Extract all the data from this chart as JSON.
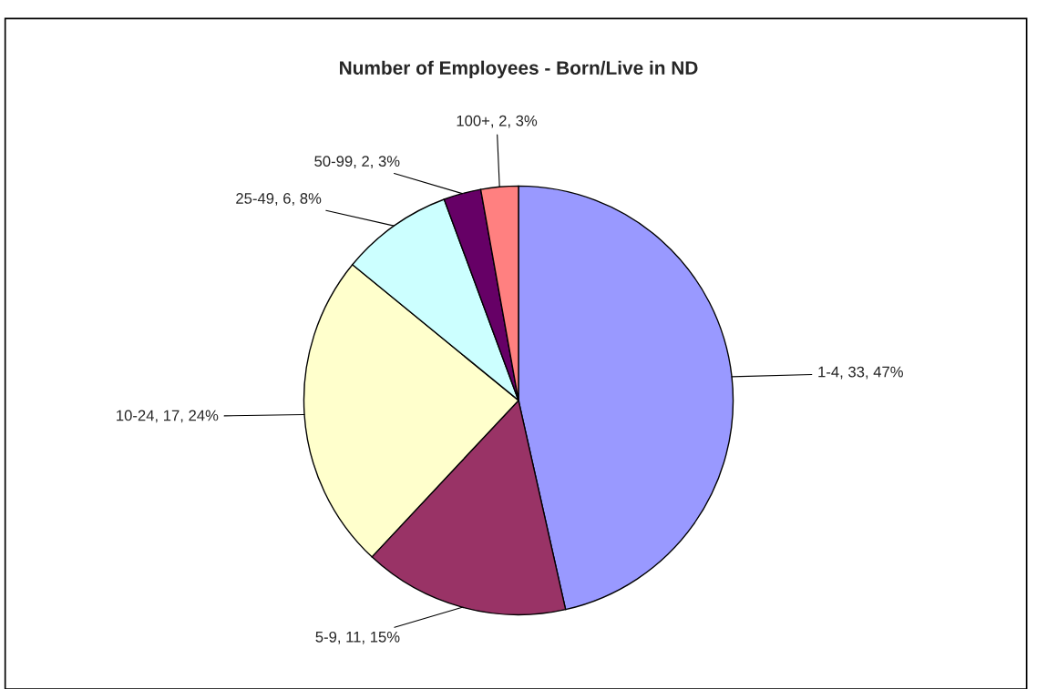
{
  "chart_data": {
    "type": "pie",
    "title": "Number of Employees - Born/Live in ND",
    "categories": [
      "1-4",
      "5-9",
      "10-24",
      "25-49",
      "50-99",
      "100+"
    ],
    "values": [
      33,
      11,
      17,
      6,
      2,
      2
    ],
    "colors": [
      "#9999ff",
      "#993366",
      "#ffffcc",
      "#ccffff",
      "#660066",
      "#ff8080"
    ],
    "value_labels": [
      "33, 47%",
      "11, 15%",
      "17, 24%",
      "6, 8%",
      "2, 3%",
      "2, 3%"
    ],
    "legend": false
  }
}
